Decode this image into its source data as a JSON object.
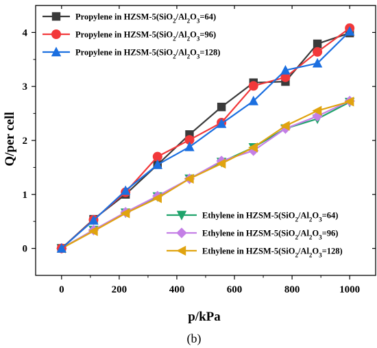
{
  "chart_data": {
    "type": "line",
    "xlabel": "p/kPa",
    "ylabel": "Q/per cell",
    "panel_label": "(b)",
    "xlim": [
      -90,
      1090
    ],
    "ylim": [
      -0.5,
      4.5
    ],
    "xticks": [
      0,
      200,
      400,
      600,
      800,
      1000
    ],
    "yticks": [
      0,
      1,
      2,
      3,
      4
    ],
    "grid": false,
    "legends": [
      "top-left",
      "bottom-right"
    ],
    "x": [
      0,
      111,
      222,
      333,
      444,
      555,
      666,
      777,
      888,
      1000
    ],
    "series": [
      {
        "name": "Propylene in HZSM-5(SiO2/Al2O3=64)",
        "label_prefix": "Propylene in HZSM-5(SiO",
        "label_mid": "/Al",
        "label_o": "O",
        "label_suffix": "=64)",
        "color": "#3a3a3a",
        "marker": "square",
        "legend": 0,
        "values": [
          0,
          0.54,
          1.0,
          1.55,
          2.11,
          2.62,
          3.07,
          3.09,
          3.79,
          3.99
        ]
      },
      {
        "name": "Propylene in HZSM-5(SiO2/Al2O3=96)",
        "label_prefix": "Propylene in HZSM-5(SiO",
        "label_mid": "/Al",
        "label_o": "O",
        "label_suffix": "=96)",
        "color": "#f2383a",
        "marker": "circle",
        "legend": 0,
        "values": [
          0,
          0.53,
          1.04,
          1.7,
          2.01,
          2.33,
          3.01,
          3.17,
          3.64,
          4.08
        ]
      },
      {
        "name": "Propylene in HZSM-5(SiO2/Al2O3=128)",
        "label_prefix": "Propylene in HZSM-5(SiO",
        "label_mid": "/Al",
        "label_o": "O",
        "label_suffix": "=128)",
        "color": "#1b6fe0",
        "marker": "triangle-up",
        "legend": 0,
        "values": [
          0,
          0.52,
          1.07,
          1.55,
          1.88,
          2.31,
          2.73,
          3.3,
          3.43,
          4.02
        ]
      },
      {
        "name": "Ethylene in HZSM-5(SiO2/Al2O3=64)",
        "label_prefix": "Ethylene in HZSM-5(SiO",
        "label_mid": "/Al",
        "label_o": "O",
        "label_suffix": "=64)",
        "color": "#1fa36b",
        "marker": "triangle-down",
        "legend": 1,
        "values": [
          0,
          0.34,
          0.66,
          0.96,
          1.29,
          1.6,
          1.87,
          2.22,
          2.4,
          2.71
        ]
      },
      {
        "name": "Ethylene in HZSM-5(SiO2/Al2O3=96)",
        "label_prefix": "Ethylene in HZSM-5(SiO",
        "label_mid": "/Al",
        "label_o": "O",
        "label_suffix": "=96)",
        "color": "#c47fe6",
        "marker": "diamond",
        "legend": 1,
        "values": [
          0,
          0.34,
          0.67,
          0.97,
          1.29,
          1.62,
          1.81,
          2.22,
          2.45,
          2.73
        ]
      },
      {
        "name": "Ethylene in HZSM-5(SiO2/Al2O3=128)",
        "label_prefix": "Ethylene in HZSM-5(SiO",
        "label_mid": "/Al",
        "label_o": "O",
        "label_suffix": "=128)",
        "color": "#e0a30f",
        "marker": "triangle-left",
        "legend": 1,
        "values": [
          0,
          0.32,
          0.65,
          0.93,
          1.29,
          1.57,
          1.87,
          2.27,
          2.55,
          2.72
        ]
      }
    ]
  }
}
